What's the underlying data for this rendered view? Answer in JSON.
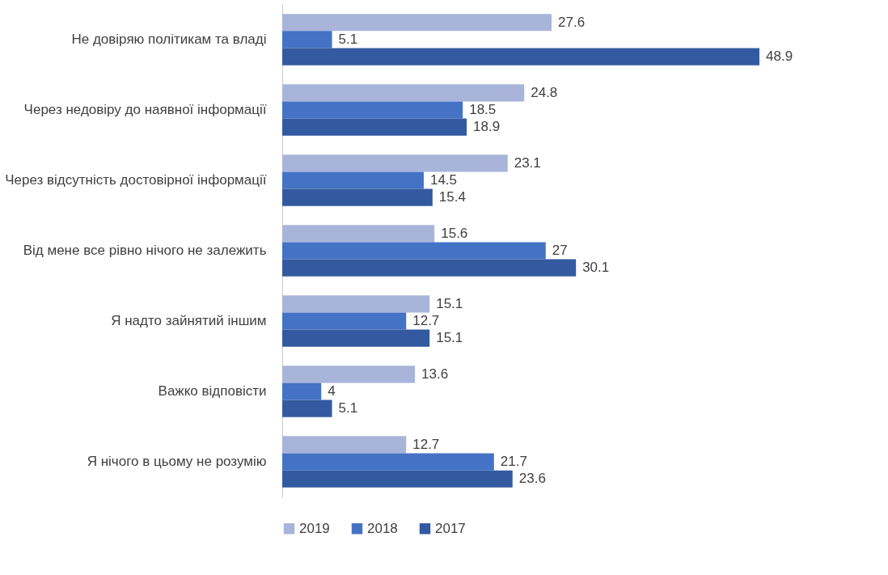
{
  "chart_data": {
    "type": "bar",
    "orientation": "horizontal",
    "categories": [
      "Не довіряю політикам та владі",
      "Через недовіру до наявної інформації",
      "Через відсутність достовірної інформації",
      "Від мене все рівно нічого не залежить",
      "Я надто зайнятий іншим",
      "Важко відповісти",
      "Я нічого в цьому не розумію"
    ],
    "series": [
      {
        "name": "2019",
        "color": "#a9b4da",
        "values": [
          27.6,
          24.8,
          23.1,
          15.6,
          15.1,
          13.6,
          12.7
        ]
      },
      {
        "name": "2018",
        "color": "#4472c4",
        "values": [
          5.1,
          18.5,
          14.5,
          27,
          12.7,
          4,
          21.7
        ]
      },
      {
        "name": "2017",
        "color": "#335aa0",
        "values": [
          48.9,
          18.9,
          15.4,
          30.1,
          15.1,
          5.1,
          23.6
        ]
      }
    ],
    "data_labels": true,
    "legend": "bottom"
  }
}
